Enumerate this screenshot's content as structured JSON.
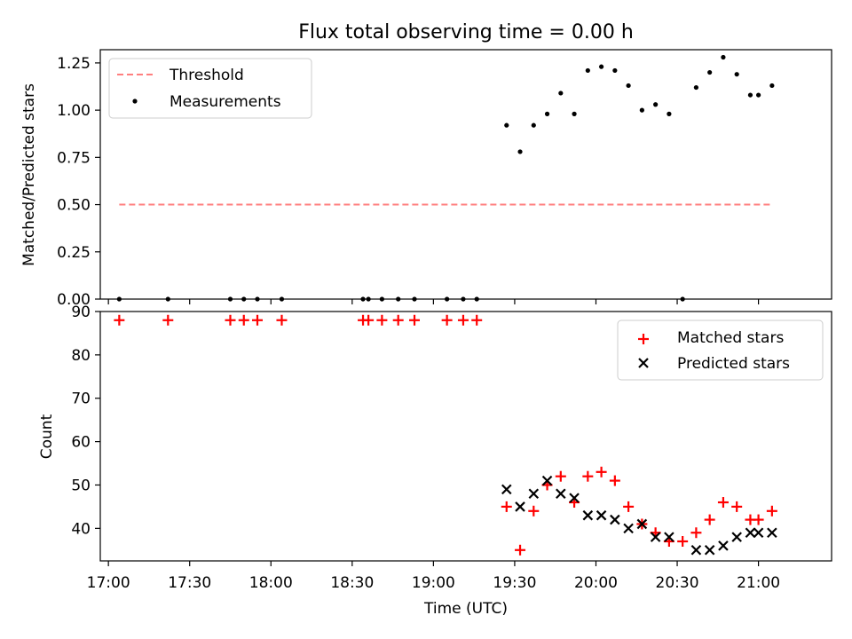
{
  "chart_data": [
    {
      "type": "scatter",
      "panel": "top",
      "title": "Flux total observing time = 0.00 h",
      "ylabel": "Matched/Predicted stars",
      "xlabel": "",
      "xlim": [
        "16:57",
        "21:27"
      ],
      "ylim": [
        0,
        1.32
      ],
      "yticks": [
        0.0,
        0.25,
        0.5,
        0.75,
        1.0,
        1.25
      ],
      "yticklabels": [
        "0.00",
        "0.25",
        "0.50",
        "0.75",
        "1.00",
        "1.25"
      ],
      "legend": "top-left",
      "series": [
        {
          "name": "Threshold",
          "kind": "dashed-line",
          "color": "#ff7f7f",
          "x": [
            "17:04",
            "21:05"
          ],
          "y": [
            0.5,
            0.5
          ]
        },
        {
          "name": "Measurements",
          "kind": "dot",
          "color": "#000000",
          "x": [
            "17:04",
            "17:22",
            "17:45",
            "17:50",
            "17:55",
            "18:04",
            "18:34",
            "18:36",
            "18:41",
            "18:47",
            "18:53",
            "19:05",
            "19:11",
            "19:16",
            "19:27",
            "19:32",
            "19:37",
            "19:42",
            "19:47",
            "19:52",
            "19:57",
            "20:02",
            "20:07",
            "20:12",
            "20:17",
            "20:22",
            "20:27",
            "20:32",
            "20:37",
            "20:42",
            "20:47",
            "20:52",
            "20:57",
            "21:00",
            "21:05"
          ],
          "y": [
            0,
            0,
            0,
            0,
            0,
            0,
            0,
            0,
            0,
            0,
            0,
            0,
            0,
            0,
            0.92,
            0.78,
            0.92,
            0.98,
            1.09,
            0.98,
            1.21,
            1.23,
            1.21,
            1.13,
            1.0,
            1.03,
            0.98,
            0,
            1.12,
            1.2,
            1.28,
            1.19,
            1.08,
            1.08,
            1.13
          ]
        }
      ]
    },
    {
      "type": "scatter",
      "panel": "bottom",
      "ylabel": "Count",
      "xlabel": "Time (UTC)",
      "xlim": [
        "16:57",
        "21:27"
      ],
      "ylim": [
        32.5,
        90
      ],
      "yticks": [
        40,
        50,
        60,
        70,
        80,
        90
      ],
      "yticklabels": [
        "40",
        "50",
        "60",
        "70",
        "80",
        "90"
      ],
      "xticks": [
        "17:00",
        "17:30",
        "18:00",
        "18:30",
        "19:00",
        "19:30",
        "20:00",
        "20:30",
        "21:00"
      ],
      "legend": "top-right",
      "series": [
        {
          "name": "Matched stars",
          "marker": "+",
          "color": "#ff0000",
          "x": [
            "17:04",
            "17:22",
            "17:45",
            "17:50",
            "17:55",
            "18:04",
            "18:34",
            "18:36",
            "18:41",
            "18:47",
            "18:53",
            "19:05",
            "19:11",
            "19:16",
            "19:27",
            "19:32",
            "19:37",
            "19:42",
            "19:47",
            "19:52",
            "19:57",
            "20:02",
            "20:07",
            "20:12",
            "20:17",
            "20:22",
            "20:27",
            "20:32",
            "20:37",
            "20:42",
            "20:47",
            "20:52",
            "20:57",
            "21:00",
            "21:05"
          ],
          "y": [
            88,
            88,
            88,
            88,
            88,
            88,
            88,
            88,
            88,
            88,
            88,
            88,
            88,
            88,
            45,
            35,
            44,
            50,
            52,
            46,
            52,
            53,
            51,
            45,
            41,
            39,
            37,
            37,
            39,
            42,
            46,
            45,
            42,
            42,
            44
          ]
        },
        {
          "name": "Predicted stars",
          "marker": "x",
          "color": "#000000",
          "x": [
            "19:27",
            "19:32",
            "19:37",
            "19:42",
            "19:47",
            "19:52",
            "19:57",
            "20:02",
            "20:07",
            "20:12",
            "20:17",
            "20:22",
            "20:27",
            "20:37",
            "20:42",
            "20:47",
            "20:52",
            "20:57",
            "21:00",
            "21:05"
          ],
          "y": [
            49,
            45,
            48,
            51,
            48,
            47,
            43,
            43,
            42,
            40,
            41,
            38,
            38,
            35,
            35,
            36,
            38,
            39,
            39,
            39
          ]
        }
      ]
    }
  ]
}
